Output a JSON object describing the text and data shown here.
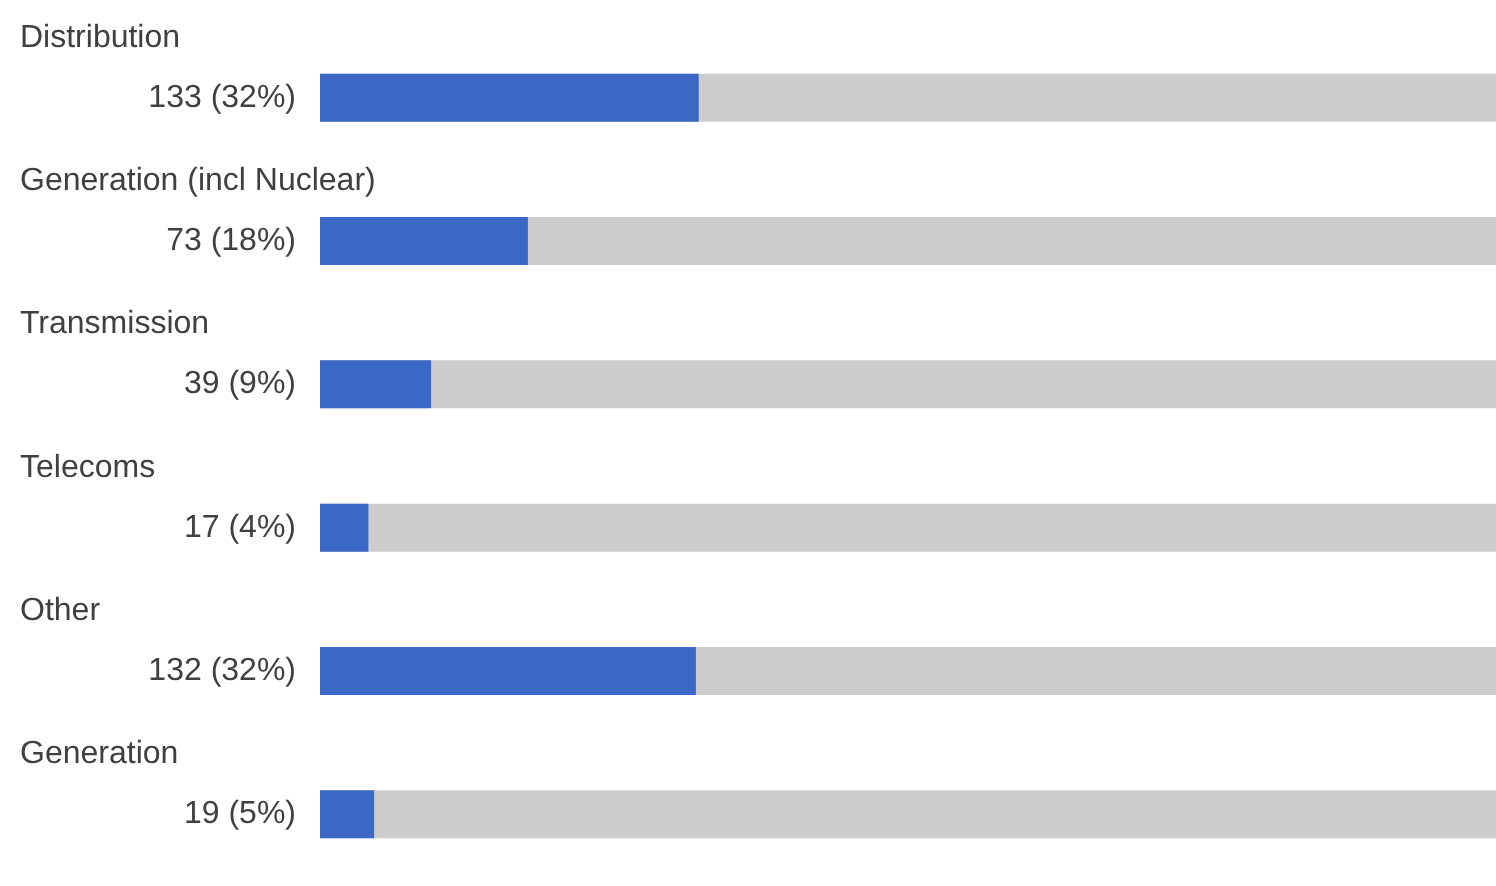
{
  "chart_data": {
    "type": "bar",
    "orientation": "horizontal",
    "xlim": [
      0,
      413
    ],
    "categories": [
      "Distribution",
      "Generation (incl Nuclear)",
      "Transmission",
      "Telecoms",
      "Other",
      "Generation"
    ],
    "series": [
      {
        "color": "#3a68c4",
        "values": [
          133,
          73,
          39,
          17,
          132,
          19
        ],
        "value_labels": [
          "133 (32%)",
          "73 (18%)",
          "39 (9%)",
          "17 (4%)",
          "132 (32%)",
          "19 (5%)"
        ]
      }
    ]
  }
}
